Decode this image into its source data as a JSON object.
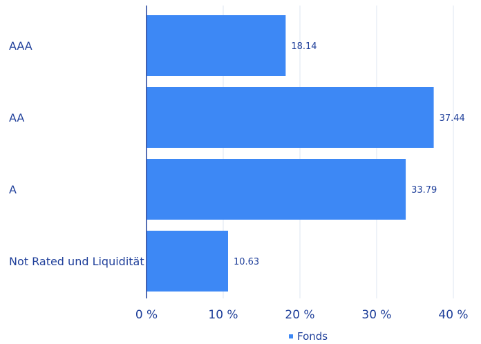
{
  "chart_data": {
    "type": "bar",
    "orientation": "horizontal",
    "categories": [
      "AAA",
      "AA",
      "A",
      "Not Rated und Liquidität"
    ],
    "series": [
      {
        "name": "Fonds",
        "values": [
          18.14,
          37.44,
          33.79,
          10.63
        ]
      }
    ],
    "value_labels": [
      "18.14",
      "37.44",
      "33.79",
      "10.63"
    ],
    "xlim": [
      0,
      40
    ],
    "x_ticks": [
      0,
      10,
      20,
      30,
      40
    ],
    "x_tick_labels": [
      "0 %",
      "10 %",
      "20 %",
      "30 %",
      "40 %"
    ],
    "grid": "vertical",
    "legend_position": "bottom-center",
    "colors": {
      "bar": "#3d88f5",
      "text": "#1f3f9a",
      "grid": "#dde5f1",
      "axis": "#1f3f9a"
    }
  }
}
